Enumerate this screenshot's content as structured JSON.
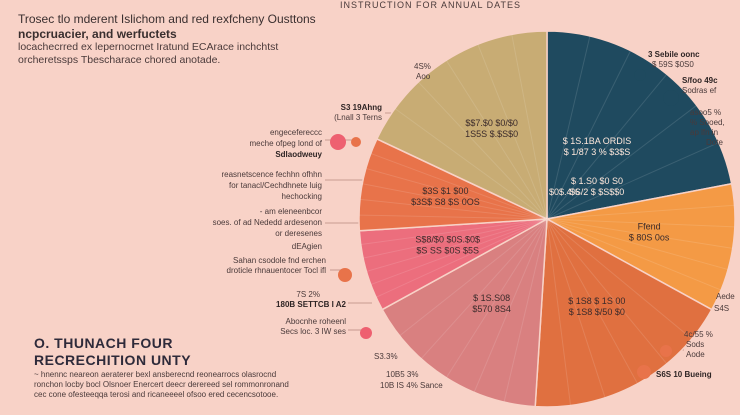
{
  "intro": {
    "line1": "Trosec tlo mderent Islichom and red rexfcheny Ousttons",
    "line2": "ncpcruacier, and werfuctets",
    "line3": "locachecrred ex lepernocrnet Iratund ECArace inchchtst",
    "line4": "orcheretssps Tbescharace chored anotade."
  },
  "top_title": "INSTRUCTION FOR ANNUAL DATES",
  "left_annotations": {
    "a1": "S3 19Ahng",
    "a2": "(Lnall 3 Terns",
    "b1": "engecefereccc",
    "b2": "meche ofpeg lond of",
    "b3": "Sdlaodweuy",
    "c1": "reasnetscence fechhn ofhhn",
    "c2": "for tanacl/Cechdhnete luig",
    "c3": "hechocking",
    "d1": "- am eleneenbcor",
    "d2": "soes. of ad Nededd ardesenon",
    "d3": "or deresenes",
    "d4": "dEAgien",
    "e1": "Sahan csodole fnd erchen",
    "e2": "droticle rhnauentocer Tocl ifl",
    "f1": "7S 2%",
    "f2": "180B SETTCB I A2",
    "g1": "Abocnhe roheenl",
    "g2": "Secs loc. 3 IW ses",
    "h1": "S3.3%",
    "h2": "10B5 3%",
    "h3": "10B IS 4% Sance",
    "top1": "4S%",
    "top2": "Aoo"
  },
  "right_annotations": {
    "a1": "3 Sebile oonc",
    "a2": "$ 59S $0S0",
    "b1": "S/foo 49c",
    "b2": "Sodras ef",
    "c1": "asoo5 %",
    "c2": "% Sooed,",
    "c3": "ap lfn in",
    "c4": "Dote",
    "d1": "Aede",
    "d2": "S4S",
    "e1": "4c/55 %",
    "e2": "Sods",
    "e3": "Aode",
    "f1": "S6S 10 Bueing"
  },
  "big_title": {
    "line1": "O. THUNACH  FOUR",
    "line2": "RECRECHITION  UNTY"
  },
  "footnote": {
    "line1": "~ hnennc neareon aeraterer bexl ansberecnd reonearrocs olasrocnd",
    "line2": "ronchon locby bocl Olsnoer Enercert deecr derereed sel rommonronand",
    "line3": "cec cone ofesteeqqa terosi and ricaneeeel ofsoo ered cecencsotooe."
  },
  "colors": {
    "background": "#f8d2c7",
    "navy": "#1f4a5f",
    "orange_light": "#f49a45",
    "orange_dark": "#e07040",
    "mauve": "#d98080",
    "pink": "#ec6e7d",
    "coral": "#e8734a",
    "khaki": "#c8ac74",
    "dot_pink": "#ee6070",
    "dot_orange": "#e8734a",
    "dot_navy": "#1f4a5f"
  },
  "chart_data": {
    "type": "pie",
    "title": "INSTRUCTION FOR ANNUAL DATES",
    "slices": [
      {
        "name": "Navy",
        "value": 22,
        "label1": "$ 1S.1BA ORDIS",
        "label2": "$ 1/87 3 % $3$S",
        "label3": "$ 1.S0 $0 S0",
        "label4": "$S/2 $ $S$$0",
        "color": "#1f4a5f"
      },
      {
        "name": "Light orange",
        "value": 11,
        "label1": "Ffend",
        "label2": "$ 80S 0os",
        "color": "#f49a45"
      },
      {
        "name": "Dark orange",
        "value": 18,
        "label1": "$ 1S8 $ 1S 00",
        "label2": "$ 1S8 $/50 $0",
        "color": "#e07040"
      },
      {
        "name": "Mauve",
        "value": 16,
        "label1": "$ 1S.S08",
        "label2": "$570 8S4",
        "color": "#d98080"
      },
      {
        "name": "Pink",
        "value": 7,
        "label1": "S$8/$0 $0S.$0$",
        "label2": "$S SS $0S $5S",
        "color": "#ec6e7d"
      },
      {
        "name": "Coral",
        "value": 8,
        "label1": "$3S $1 $00",
        "label2": "$3S$ S8 $S 0OS",
        "color": "#e8734a"
      },
      {
        "name": "Khaki",
        "value": 18,
        "label1": "$$7.$0 $0/$0",
        "label2": "1S5S $.$S$0",
        "color": "#c8ac74"
      }
    ],
    "center_label": "$0$.4%"
  }
}
